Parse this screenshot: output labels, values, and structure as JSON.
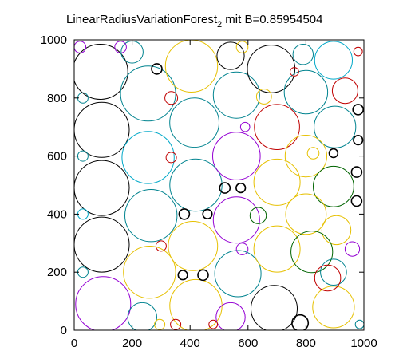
{
  "chart_data": {
    "type": "scatter",
    "title": "LinearRadiusVariationForest",
    "title_subscript": "2",
    "title_suffix": " mit B=0.85954504",
    "xlabel": "",
    "ylabel": "",
    "xlim": [
      0,
      1000
    ],
    "ylim": [
      0,
      1000
    ],
    "xticks": [
      "0",
      "200",
      "400",
      "600",
      "800",
      "1000"
    ],
    "yticks": [
      "0",
      "200",
      "400",
      "600",
      "800",
      "1000"
    ],
    "grid": false,
    "marker": "circle",
    "colors": {
      "black": "#000000",
      "teal": "#00838f",
      "darkgreen": "#006400",
      "purple": "#9400d3",
      "gold": "#e6c000",
      "red": "#c00000",
      "cyan": "#00a8c8"
    },
    "circles": [
      {
        "x": 90,
        "y": 890,
        "r": 95,
        "c": "black"
      },
      {
        "x": 95,
        "y": 690,
        "r": 95,
        "c": "black"
      },
      {
        "x": 95,
        "y": 490,
        "r": 95,
        "c": "black"
      },
      {
        "x": 95,
        "y": 295,
        "r": 95,
        "c": "black"
      },
      {
        "x": 100,
        "y": 90,
        "r": 95,
        "c": "purple"
      },
      {
        "x": 255,
        "y": 815,
        "r": 95,
        "c": "teal"
      },
      {
        "x": 255,
        "y": 595,
        "r": 90,
        "c": "cyan"
      },
      {
        "x": 265,
        "y": 395,
        "r": 90,
        "c": "teal"
      },
      {
        "x": 260,
        "y": 200,
        "r": 90,
        "c": "gold"
      },
      {
        "x": 235,
        "y": 45,
        "r": 50,
        "c": "teal"
      },
      {
        "x": 405,
        "y": 910,
        "r": 90,
        "c": "gold"
      },
      {
        "x": 415,
        "y": 715,
        "r": 85,
        "c": "teal"
      },
      {
        "x": 420,
        "y": 500,
        "r": 90,
        "c": "teal"
      },
      {
        "x": 410,
        "y": 290,
        "r": 85,
        "c": "gold"
      },
      {
        "x": 420,
        "y": 85,
        "r": 90,
        "c": "gold"
      },
      {
        "x": 540,
        "y": 945,
        "r": 47,
        "c": "black"
      },
      {
        "x": 560,
        "y": 810,
        "r": 80,
        "c": "teal"
      },
      {
        "x": 560,
        "y": 600,
        "r": 82,
        "c": "purple"
      },
      {
        "x": 560,
        "y": 380,
        "r": 80,
        "c": "purple"
      },
      {
        "x": 565,
        "y": 195,
        "r": 80,
        "c": "teal"
      },
      {
        "x": 540,
        "y": 45,
        "r": 50,
        "c": "purple"
      },
      {
        "x": 680,
        "y": 900,
        "r": 82,
        "c": "black"
      },
      {
        "x": 700,
        "y": 700,
        "r": 78,
        "c": "red"
      },
      {
        "x": 700,
        "y": 510,
        "r": 80,
        "c": "gold"
      },
      {
        "x": 700,
        "y": 280,
        "r": 80,
        "c": "gold"
      },
      {
        "x": 690,
        "y": 75,
        "r": 80,
        "c": "black"
      },
      {
        "x": 790,
        "y": 950,
        "r": 35,
        "c": "teal"
      },
      {
        "x": 895,
        "y": 930,
        "r": 65,
        "c": "cyan"
      },
      {
        "x": 800,
        "y": 820,
        "r": 75,
        "c": "teal"
      },
      {
        "x": 900,
        "y": 700,
        "r": 72,
        "c": "teal"
      },
      {
        "x": 800,
        "y": 600,
        "r": 72,
        "c": "gold"
      },
      {
        "x": 895,
        "y": 495,
        "r": 70,
        "c": "darkgreen"
      },
      {
        "x": 800,
        "y": 400,
        "r": 70,
        "c": "gold"
      },
      {
        "x": 905,
        "y": 345,
        "r": 50,
        "c": "gold"
      },
      {
        "x": 820,
        "y": 270,
        "r": 72,
        "c": "darkgreen"
      },
      {
        "x": 895,
        "y": 200,
        "r": 45,
        "c": "teal"
      },
      {
        "x": 895,
        "y": 80,
        "r": 72,
        "c": "gold"
      },
      {
        "x": 285,
        "y": 900,
        "r": 18,
        "c": "black"
      },
      {
        "x": 300,
        "y": 290,
        "r": 18,
        "c": "red"
      },
      {
        "x": 380,
        "y": 400,
        "r": 18,
        "c": "black"
      },
      {
        "x": 375,
        "y": 190,
        "r": 16,
        "c": "black"
      },
      {
        "x": 445,
        "y": 190,
        "r": 18,
        "c": "black"
      },
      {
        "x": 460,
        "y": 400,
        "r": 16,
        "c": "black"
      },
      {
        "x": 520,
        "y": 490,
        "r": 18,
        "c": "black"
      },
      {
        "x": 575,
        "y": 490,
        "r": 16,
        "c": "black"
      },
      {
        "x": 780,
        "y": 25,
        "r": 28,
        "c": "black"
      },
      {
        "x": 980,
        "y": 760,
        "r": 18,
        "c": "black"
      },
      {
        "x": 980,
        "y": 655,
        "r": 16,
        "c": "black"
      },
      {
        "x": 975,
        "y": 545,
        "r": 18,
        "c": "black"
      },
      {
        "x": 975,
        "y": 445,
        "r": 18,
        "c": "black"
      },
      {
        "x": 895,
        "y": 610,
        "r": 15,
        "c": "black"
      },
      {
        "x": 825,
        "y": 610,
        "r": 20,
        "c": "gold"
      },
      {
        "x": 875,
        "y": 180,
        "r": 45,
        "c": "red"
      },
      {
        "x": 935,
        "y": 825,
        "r": 44,
        "c": "red"
      },
      {
        "x": 295,
        "y": 20,
        "r": 18,
        "c": "gold"
      },
      {
        "x": 200,
        "y": 958,
        "r": 38,
        "c": "teal"
      },
      {
        "x": 655,
        "y": 805,
        "r": 26,
        "c": "gold"
      },
      {
        "x": 635,
        "y": 395,
        "r": 28,
        "c": "darkgreen"
      },
      {
        "x": 335,
        "y": 800,
        "r": 22,
        "c": "red"
      },
      {
        "x": 335,
        "y": 595,
        "r": 18,
        "c": "red"
      },
      {
        "x": 580,
        "y": 280,
        "r": 20,
        "c": "purple"
      },
      {
        "x": 590,
        "y": 700,
        "r": 16,
        "c": "purple"
      },
      {
        "x": 20,
        "y": 975,
        "r": 20,
        "c": "purple"
      },
      {
        "x": 30,
        "y": 800,
        "r": 18,
        "c": "teal"
      },
      {
        "x": 30,
        "y": 600,
        "r": 18,
        "c": "teal"
      },
      {
        "x": 30,
        "y": 400,
        "r": 18,
        "c": "cyan"
      },
      {
        "x": 30,
        "y": 200,
        "r": 18,
        "c": "teal"
      },
      {
        "x": 160,
        "y": 975,
        "r": 20,
        "c": "purple"
      },
      {
        "x": 580,
        "y": 975,
        "r": 20,
        "c": "gold"
      },
      {
        "x": 760,
        "y": 890,
        "r": 15,
        "c": "red"
      },
      {
        "x": 980,
        "y": 960,
        "r": 15,
        "c": "red"
      },
      {
        "x": 350,
        "y": 20,
        "r": 18,
        "c": "red"
      },
      {
        "x": 480,
        "y": 20,
        "r": 15,
        "c": "red"
      },
      {
        "x": 985,
        "y": 20,
        "r": 15,
        "c": "teal"
      },
      {
        "x": 960,
        "y": 280,
        "r": 25,
        "c": "purple"
      }
    ]
  }
}
